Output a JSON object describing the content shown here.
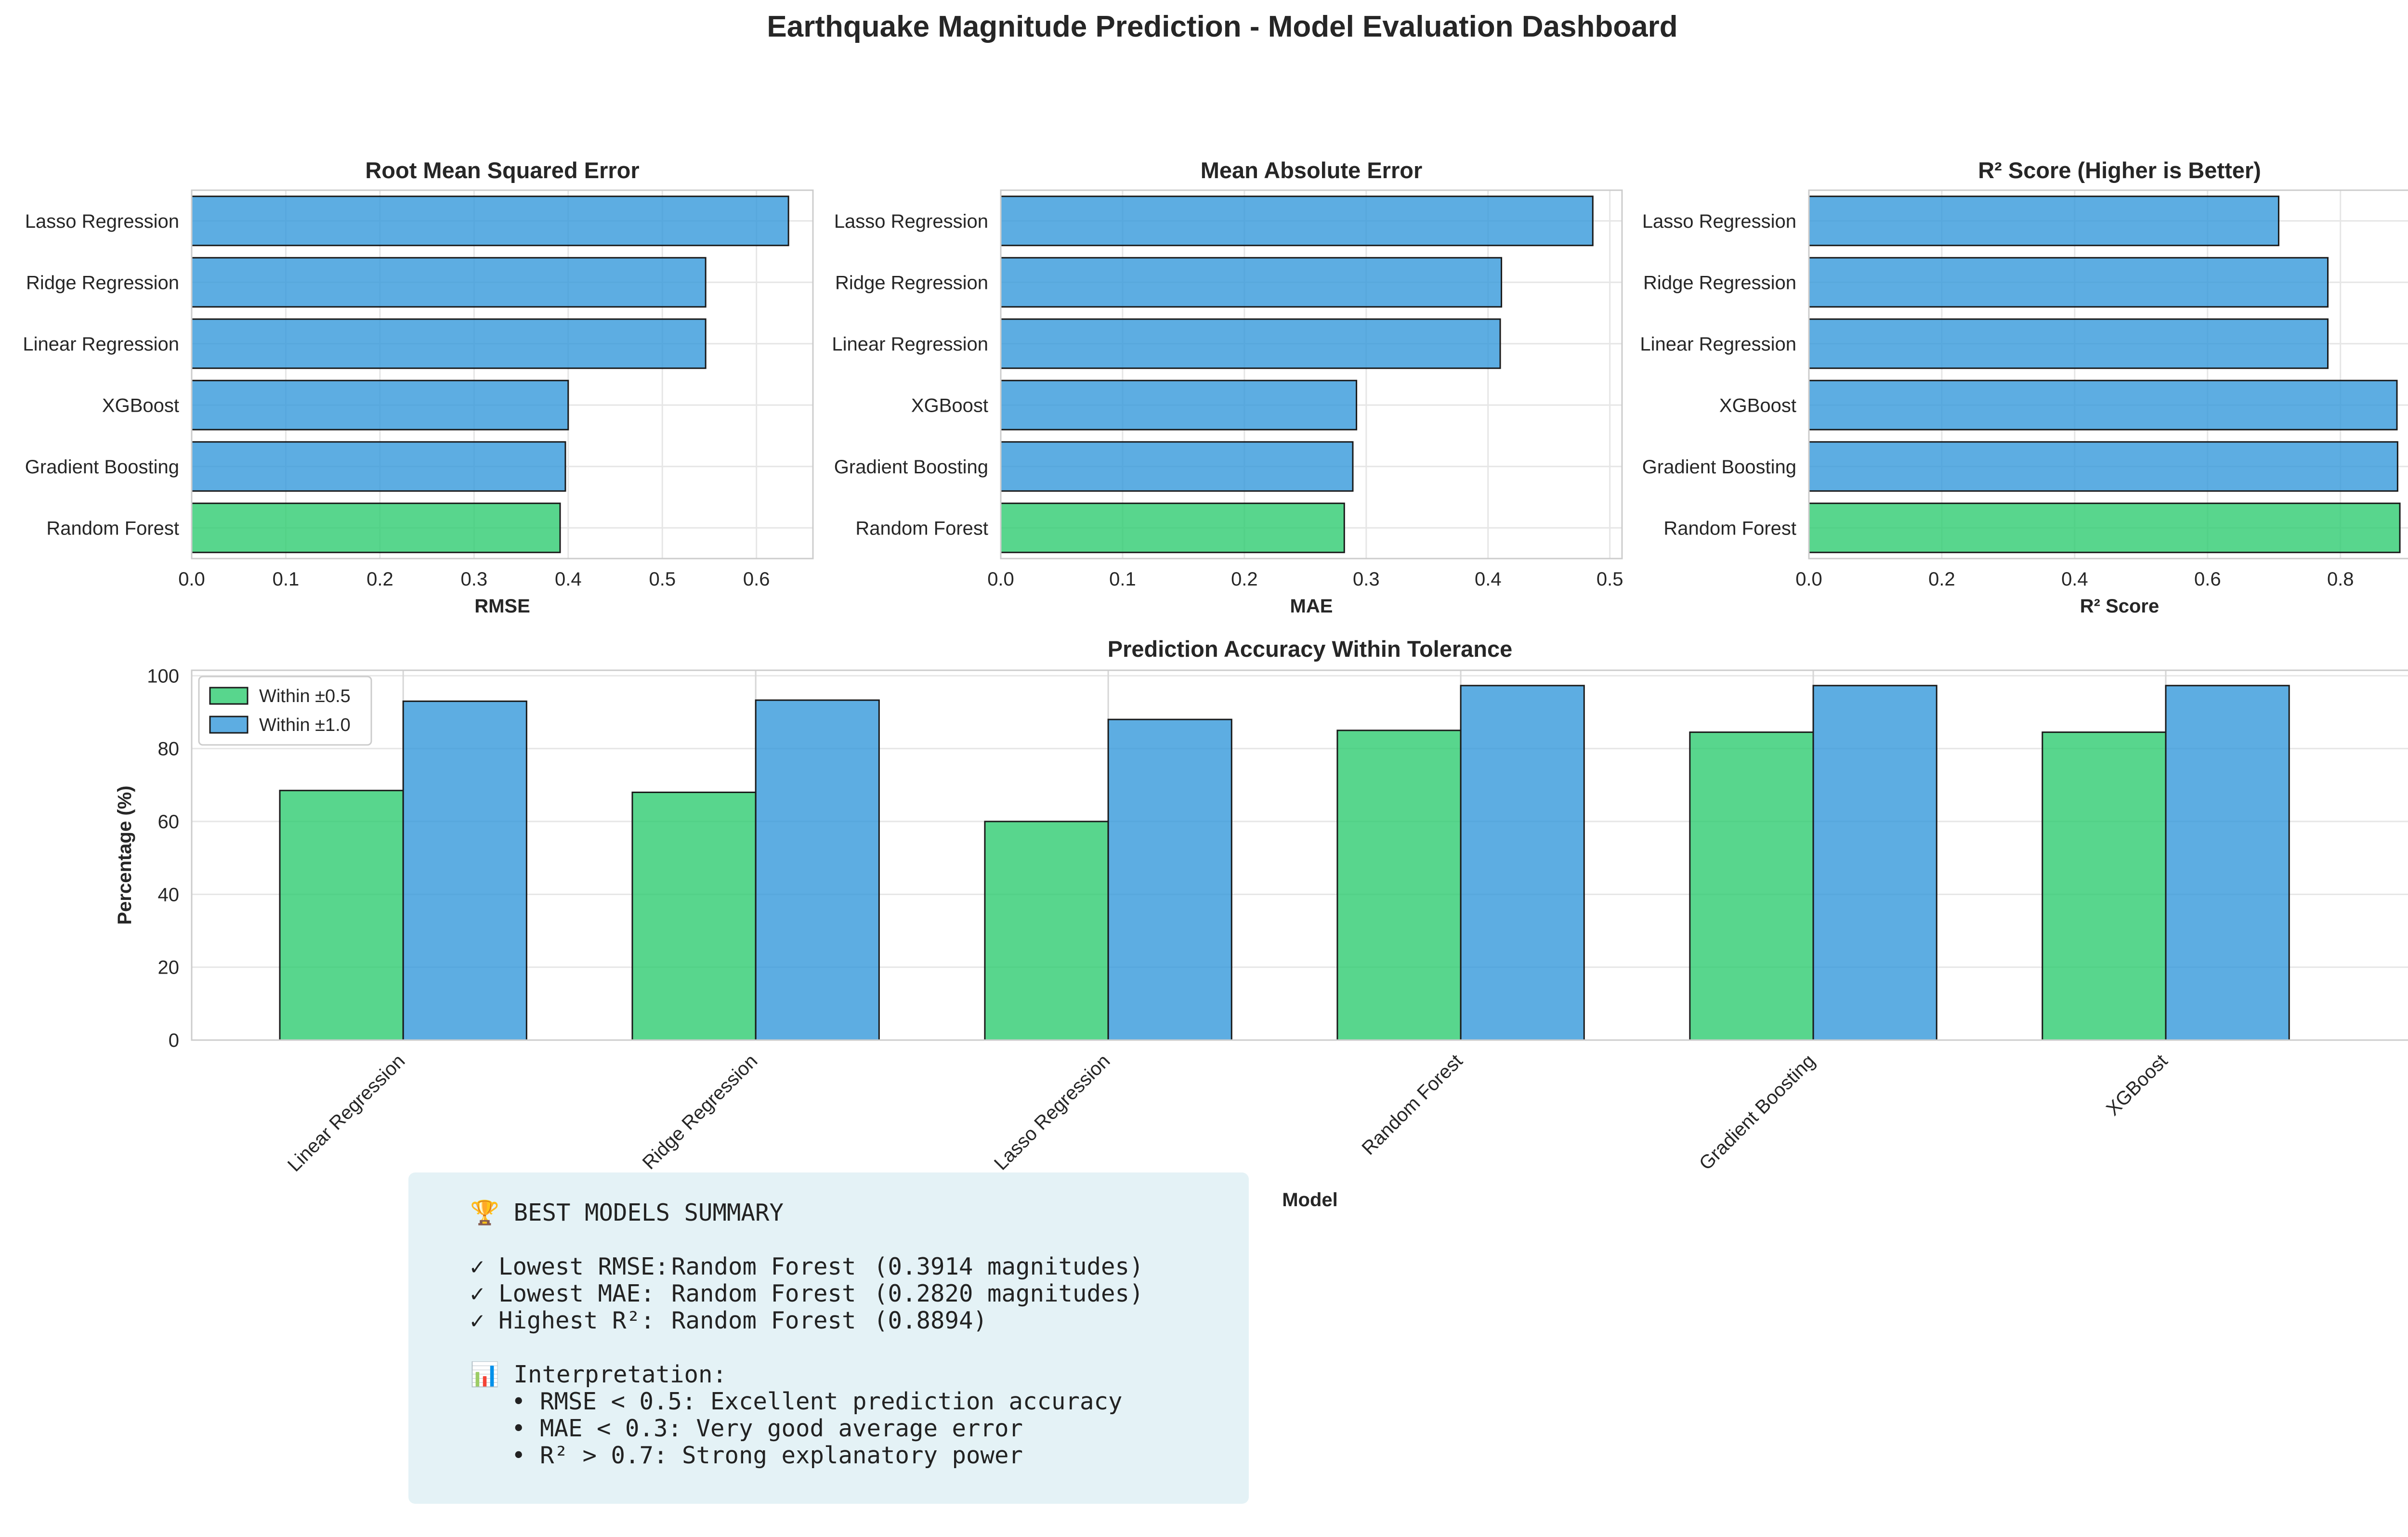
{
  "title": "Earthquake Magnitude Prediction - Model Evaluation Dashboard",
  "colors": {
    "best": "#2ecc71",
    "other": "#3498db",
    "edge": "#1a1a1a",
    "grid": "#e6e6e6",
    "summary_bg": "#e4f2f6"
  },
  "chart_data": [
    {
      "type": "bar",
      "orientation": "horizontal",
      "title": "Root Mean Squared Error",
      "xlabel": "RMSE",
      "categories": [
        "Random Forest",
        "Gradient Boosting",
        "XGBoost",
        "Linear Regression",
        "Ridge Regression",
        "Lasso Regression"
      ],
      "values": [
        0.3914,
        0.397,
        0.4,
        0.546,
        0.546,
        0.634
      ],
      "xlim": [
        0,
        0.66
      ],
      "ticks": [
        0.0,
        0.1,
        0.2,
        0.3,
        0.4,
        0.5,
        0.6
      ],
      "tick_labels": [
        "0.0",
        "0.1",
        "0.2",
        "0.3",
        "0.4",
        "0.5",
        "0.6"
      ],
      "highlight": "Random Forest",
      "grid": true
    },
    {
      "type": "bar",
      "orientation": "horizontal",
      "title": "Mean Absolute Error",
      "xlabel": "MAE",
      "categories": [
        "Random Forest",
        "Gradient Boosting",
        "XGBoost",
        "Linear Regression",
        "Ridge Regression",
        "Lasso Regression"
      ],
      "values": [
        0.282,
        0.289,
        0.292,
        0.41,
        0.411,
        0.486
      ],
      "xlim": [
        0,
        0.51
      ],
      "ticks": [
        0.0,
        0.1,
        0.2,
        0.3,
        0.4,
        0.5
      ],
      "tick_labels": [
        "0.0",
        "0.1",
        "0.2",
        "0.3",
        "0.4",
        "0.5"
      ],
      "highlight": "Random Forest",
      "grid": true
    },
    {
      "type": "bar",
      "orientation": "horizontal",
      "title": "R² Score (Higher is Better)",
      "xlabel": "R² Score",
      "categories": [
        "Random Forest",
        "Gradient Boosting",
        "XGBoost",
        "Linear Regression",
        "Ridge Regression",
        "Lasso Regression"
      ],
      "values": [
        0.8894,
        0.886,
        0.885,
        0.781,
        0.781,
        0.707
      ],
      "xlim": [
        0,
        0.935
      ],
      "ticks": [
        0.0,
        0.2,
        0.4,
        0.6,
        0.8
      ],
      "tick_labels": [
        "0.0",
        "0.2",
        "0.4",
        "0.6",
        "0.8"
      ],
      "highlight": "Random Forest",
      "grid": true
    },
    {
      "type": "bar",
      "orientation": "vertical",
      "title": "Prediction Accuracy Within Tolerance",
      "xlabel": "Model",
      "ylabel": "Percentage (%)",
      "categories": [
        "Linear Regression",
        "Ridge Regression",
        "Lasso Regression",
        "Random Forest",
        "Gradient Boosting",
        "XGBoost"
      ],
      "series": [
        {
          "name": "Within ±0.5",
          "values": [
            68.5,
            68.0,
            60.0,
            85.0,
            84.5,
            84.5
          ]
        },
        {
          "name": "Within ±1.0",
          "values": [
            93.0,
            93.3,
            88.0,
            97.3,
            97.3,
            97.3
          ]
        }
      ],
      "ylim": [
        0,
        101.5
      ],
      "ticks": [
        0,
        20,
        40,
        60,
        80,
        100
      ],
      "tick_labels": [
        "0",
        "20",
        "40",
        "60",
        "80",
        "100"
      ],
      "legend": "top-left",
      "grid": true
    }
  ],
  "summary": {
    "heading": "🏆 BEST MODELS SUMMARY",
    "rows": [
      {
        "label": "✓ Lowest RMSE:",
        "model": "Random Forest",
        "value": "(0.3914 magnitudes)"
      },
      {
        "label": "✓ Lowest MAE:",
        "model": "Random Forest",
        "value": "(0.2820 magnitudes)"
      },
      {
        "label": "✓ Highest R²:",
        "model": "Random Forest",
        "value": "(0.8894)"
      }
    ],
    "interpretation_heading": "📊 Interpretation:",
    "bullets": [
      "• RMSE < 0.5: Excellent prediction accuracy",
      "• MAE < 0.3: Very good average error",
      "• R² > 0.7: Strong explanatory power"
    ]
  }
}
